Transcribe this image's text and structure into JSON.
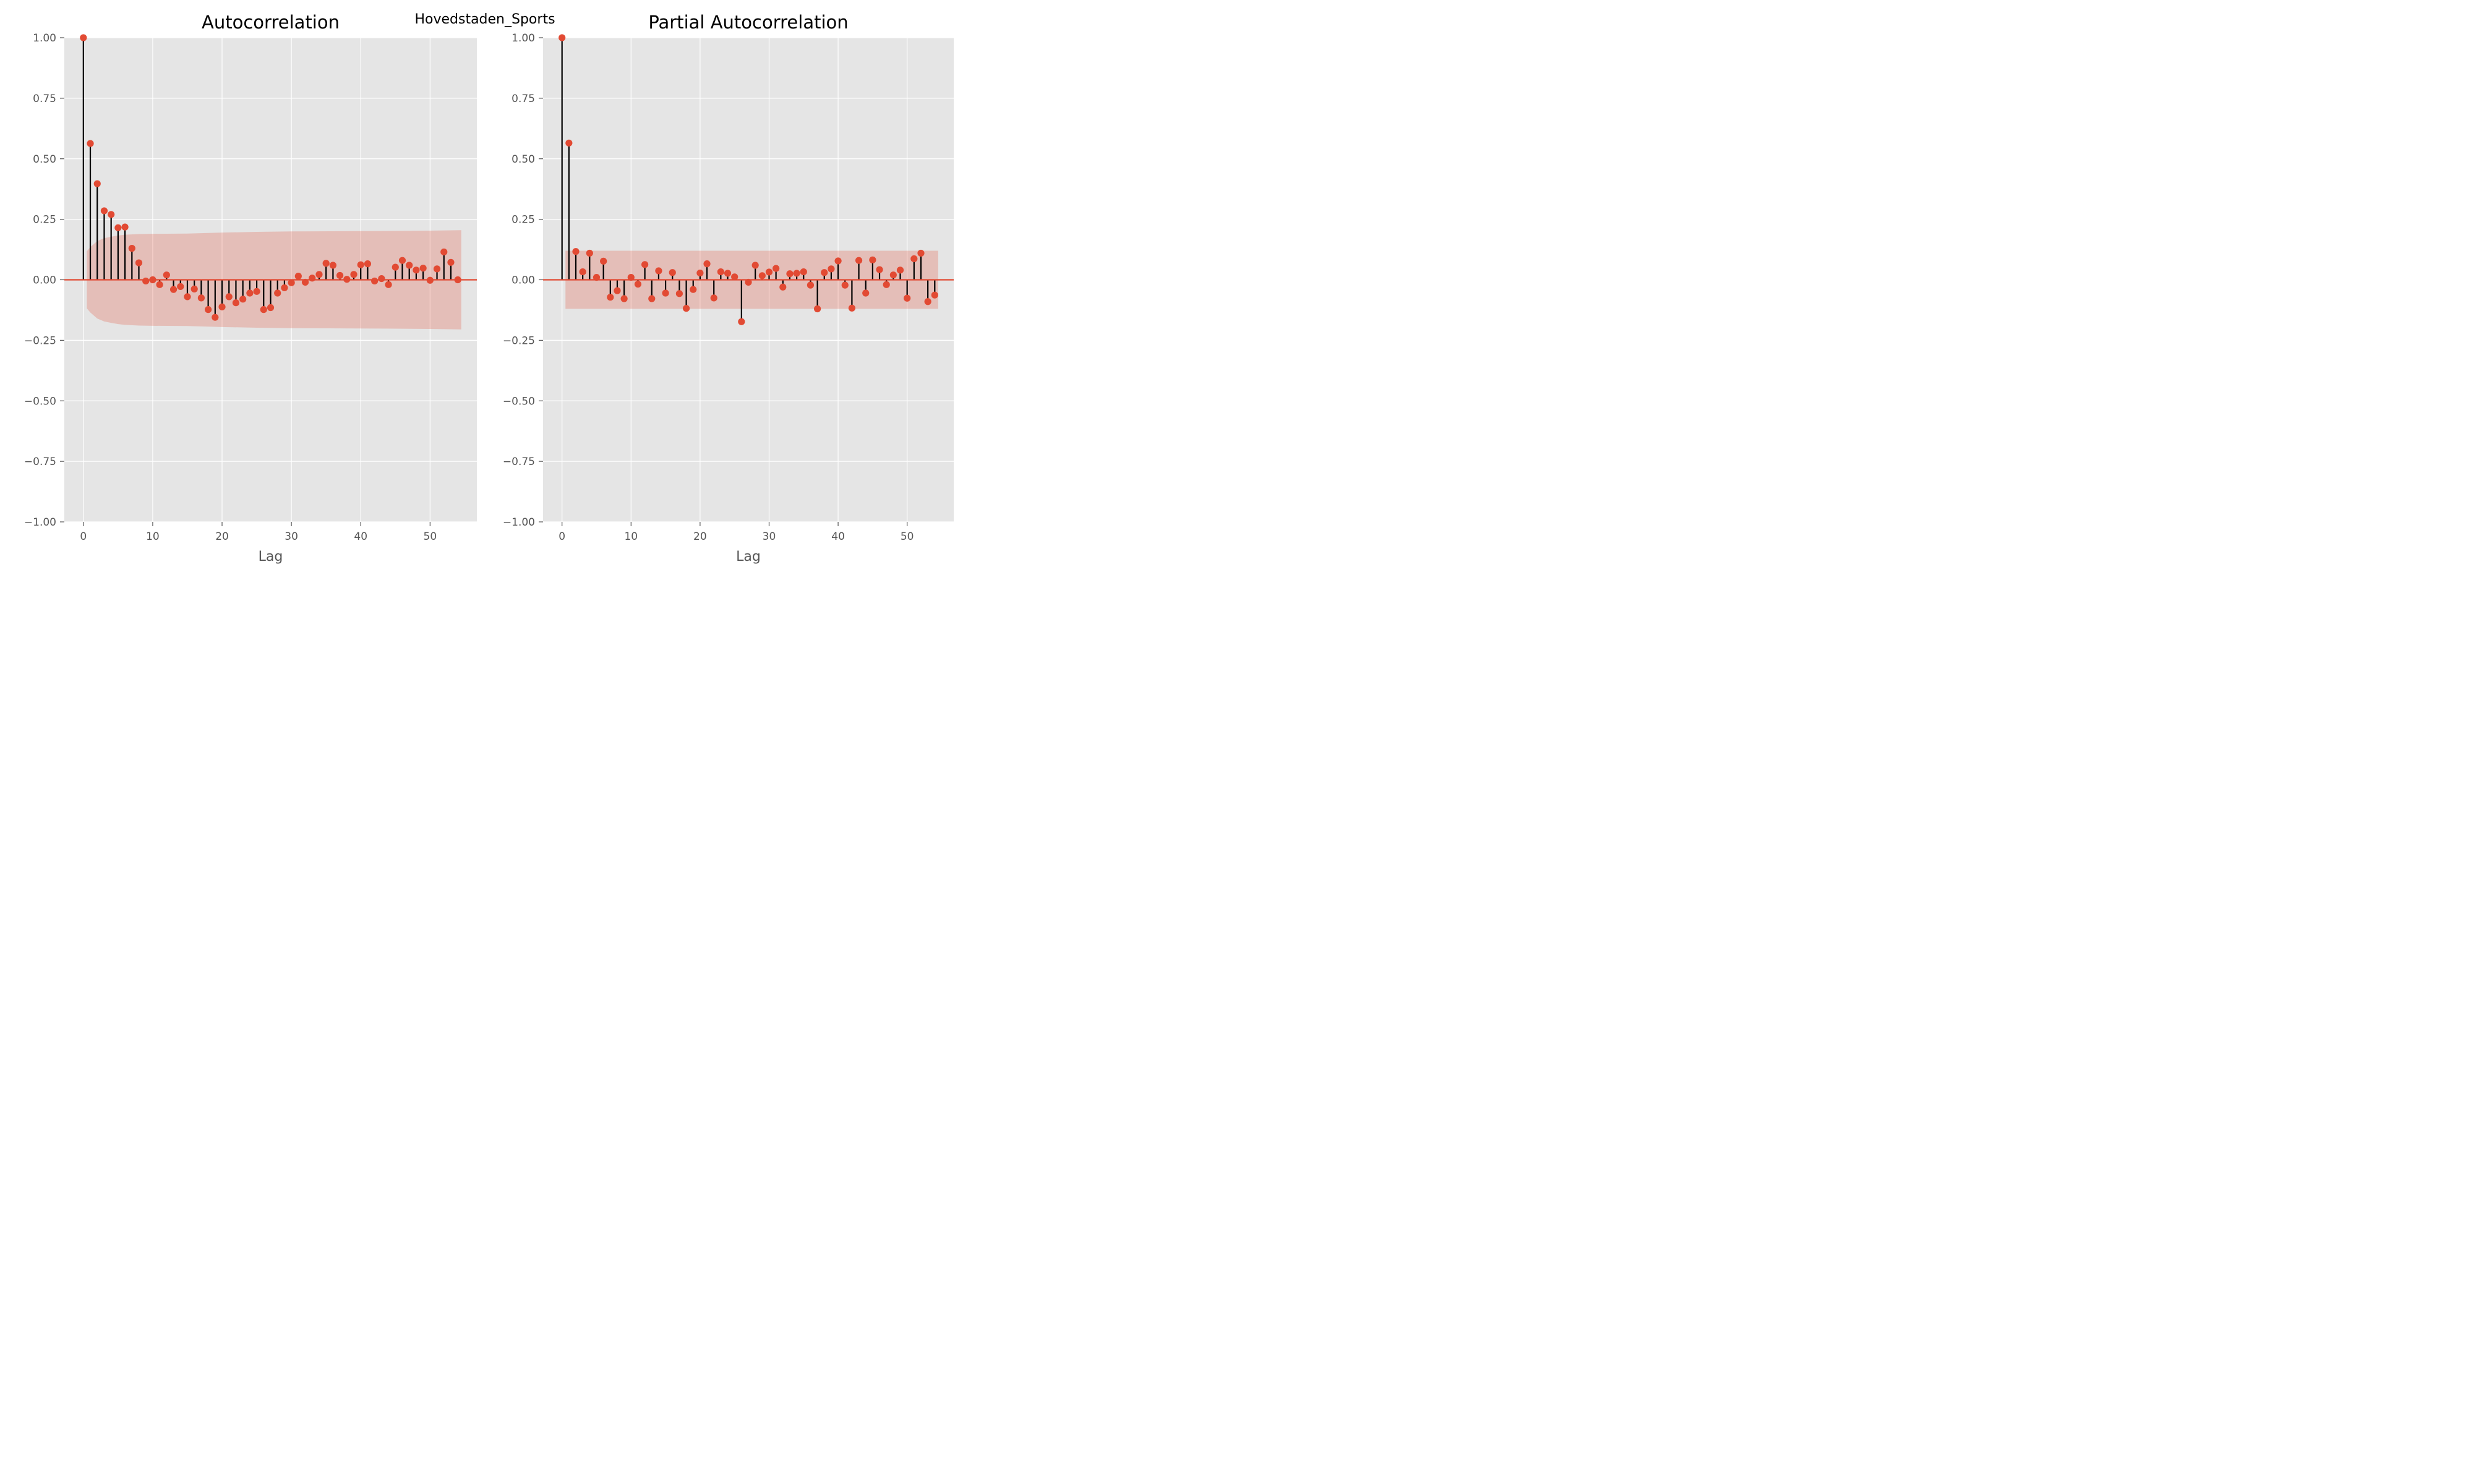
{
  "suptitle": "Hovedstaden_Sports",
  "colors": {
    "panel_bg": "#e5e5e5",
    "grid": "#ffffff",
    "marker": "#e24a33",
    "stem": "#000000",
    "baseline": "#e24a33",
    "band": "#e24a33",
    "tick_text": "#555555",
    "label_text": "#555555",
    "title_text": "#000000"
  },
  "chart_data": [
    {
      "type": "stem",
      "title": "Autocorrelation",
      "xlabel": "Lag",
      "ylabel": "",
      "xlim": [
        -2.75,
        56.75
      ],
      "ylim": [
        -1.0,
        1.0
      ],
      "xticks": [
        0,
        10,
        20,
        30,
        40,
        50
      ],
      "yticks": [
        -1.0,
        -0.75,
        -0.5,
        -0.25,
        0.0,
        0.25,
        0.5,
        0.75,
        1.0
      ],
      "ytick_labels": [
        "−1.00",
        "−0.75",
        "−0.50",
        "−0.25",
        "0.00",
        "0.25",
        "0.50",
        "0.75",
        "1.00"
      ],
      "xtick_labels": [
        "0",
        "10",
        "20",
        "30",
        "40",
        "50"
      ],
      "grid": true,
      "lags": [
        0,
        1,
        2,
        3,
        4,
        5,
        6,
        7,
        8,
        9,
        10,
        11,
        12,
        13,
        14,
        15,
        16,
        17,
        18,
        19,
        20,
        21,
        22,
        23,
        24,
        25,
        26,
        27,
        28,
        29,
        30,
        31,
        32,
        33,
        34,
        35,
        36,
        37,
        38,
        39,
        40,
        41,
        42,
        43,
        44,
        45,
        46,
        47,
        48,
        49,
        50,
        51,
        52,
        53,
        54
      ],
      "values": [
        1.0,
        0.563,
        0.397,
        0.285,
        0.27,
        0.215,
        0.218,
        0.13,
        0.07,
        -0.005,
        0.0,
        -0.02,
        0.02,
        -0.04,
        -0.028,
        -0.07,
        -0.038,
        -0.075,
        -0.123,
        -0.155,
        -0.112,
        -0.07,
        -0.095,
        -0.08,
        -0.055,
        -0.048,
        -0.123,
        -0.115,
        -0.055,
        -0.033,
        -0.012,
        0.015,
        -0.01,
        0.007,
        0.022,
        0.068,
        0.06,
        0.018,
        0.002,
        0.022,
        0.062,
        0.066,
        -0.005,
        0.005,
        -0.02,
        0.052,
        0.08,
        0.06,
        0.04,
        0.048,
        -0.002,
        0.045,
        0.115,
        0.072,
        0.0
      ],
      "confidence_band": {
        "lags": [
          0.5,
          1,
          2,
          3,
          4,
          5,
          6,
          8,
          10,
          15,
          20,
          25,
          30,
          40,
          50,
          54.5
        ],
        "upper": [
          0.118,
          0.135,
          0.16,
          0.172,
          0.178,
          0.183,
          0.186,
          0.189,
          0.19,
          0.191,
          0.195,
          0.198,
          0.2,
          0.201,
          0.203,
          0.205
        ]
      }
    },
    {
      "type": "stem",
      "title": "Partial Autocorrelation",
      "xlabel": "Lag",
      "ylabel": "",
      "xlim": [
        -2.75,
        56.75
      ],
      "ylim": [
        -1.0,
        1.0
      ],
      "xticks": [
        0,
        10,
        20,
        30,
        40,
        50
      ],
      "yticks": [
        -1.0,
        -0.75,
        -0.5,
        -0.25,
        0.0,
        0.25,
        0.5,
        0.75,
        1.0
      ],
      "ytick_labels": [
        "−1.00",
        "−0.75",
        "−0.50",
        "−0.25",
        "0.00",
        "0.25",
        "0.50",
        "0.75",
        "1.00"
      ],
      "xtick_labels": [
        "0",
        "10",
        "20",
        "30",
        "40",
        "50"
      ],
      "grid": true,
      "lags": [
        0,
        1,
        2,
        3,
        4,
        5,
        6,
        7,
        8,
        9,
        10,
        11,
        12,
        13,
        14,
        15,
        16,
        17,
        18,
        19,
        20,
        21,
        22,
        23,
        24,
        25,
        26,
        27,
        28,
        29,
        30,
        31,
        32,
        33,
        34,
        35,
        36,
        37,
        38,
        39,
        40,
        41,
        42,
        43,
        44,
        45,
        46,
        47,
        48,
        49,
        50,
        51,
        52,
        53,
        54
      ],
      "values": [
        1.0,
        0.565,
        0.117,
        0.033,
        0.11,
        0.01,
        0.077,
        -0.072,
        -0.045,
        -0.078,
        0.01,
        -0.018,
        0.063,
        -0.078,
        0.037,
        -0.055,
        0.03,
        -0.057,
        -0.118,
        -0.04,
        0.028,
        0.066,
        -0.075,
        0.033,
        0.027,
        0.012,
        -0.173,
        -0.01,
        0.06,
        0.017,
        0.032,
        0.047,
        -0.03,
        0.025,
        0.027,
        0.033,
        -0.022,
        -0.12,
        0.03,
        0.045,
        0.078,
        -0.022,
        -0.117,
        0.08,
        -0.055,
        0.082,
        0.042,
        -0.02,
        0.02,
        0.04,
        -0.076,
        0.087,
        0.11,
        -0.09,
        -0.063
      ],
      "confidence_band": {
        "lags": [
          0.5,
          54.5
        ],
        "upper": [
          0.12,
          0.12
        ]
      }
    }
  ]
}
